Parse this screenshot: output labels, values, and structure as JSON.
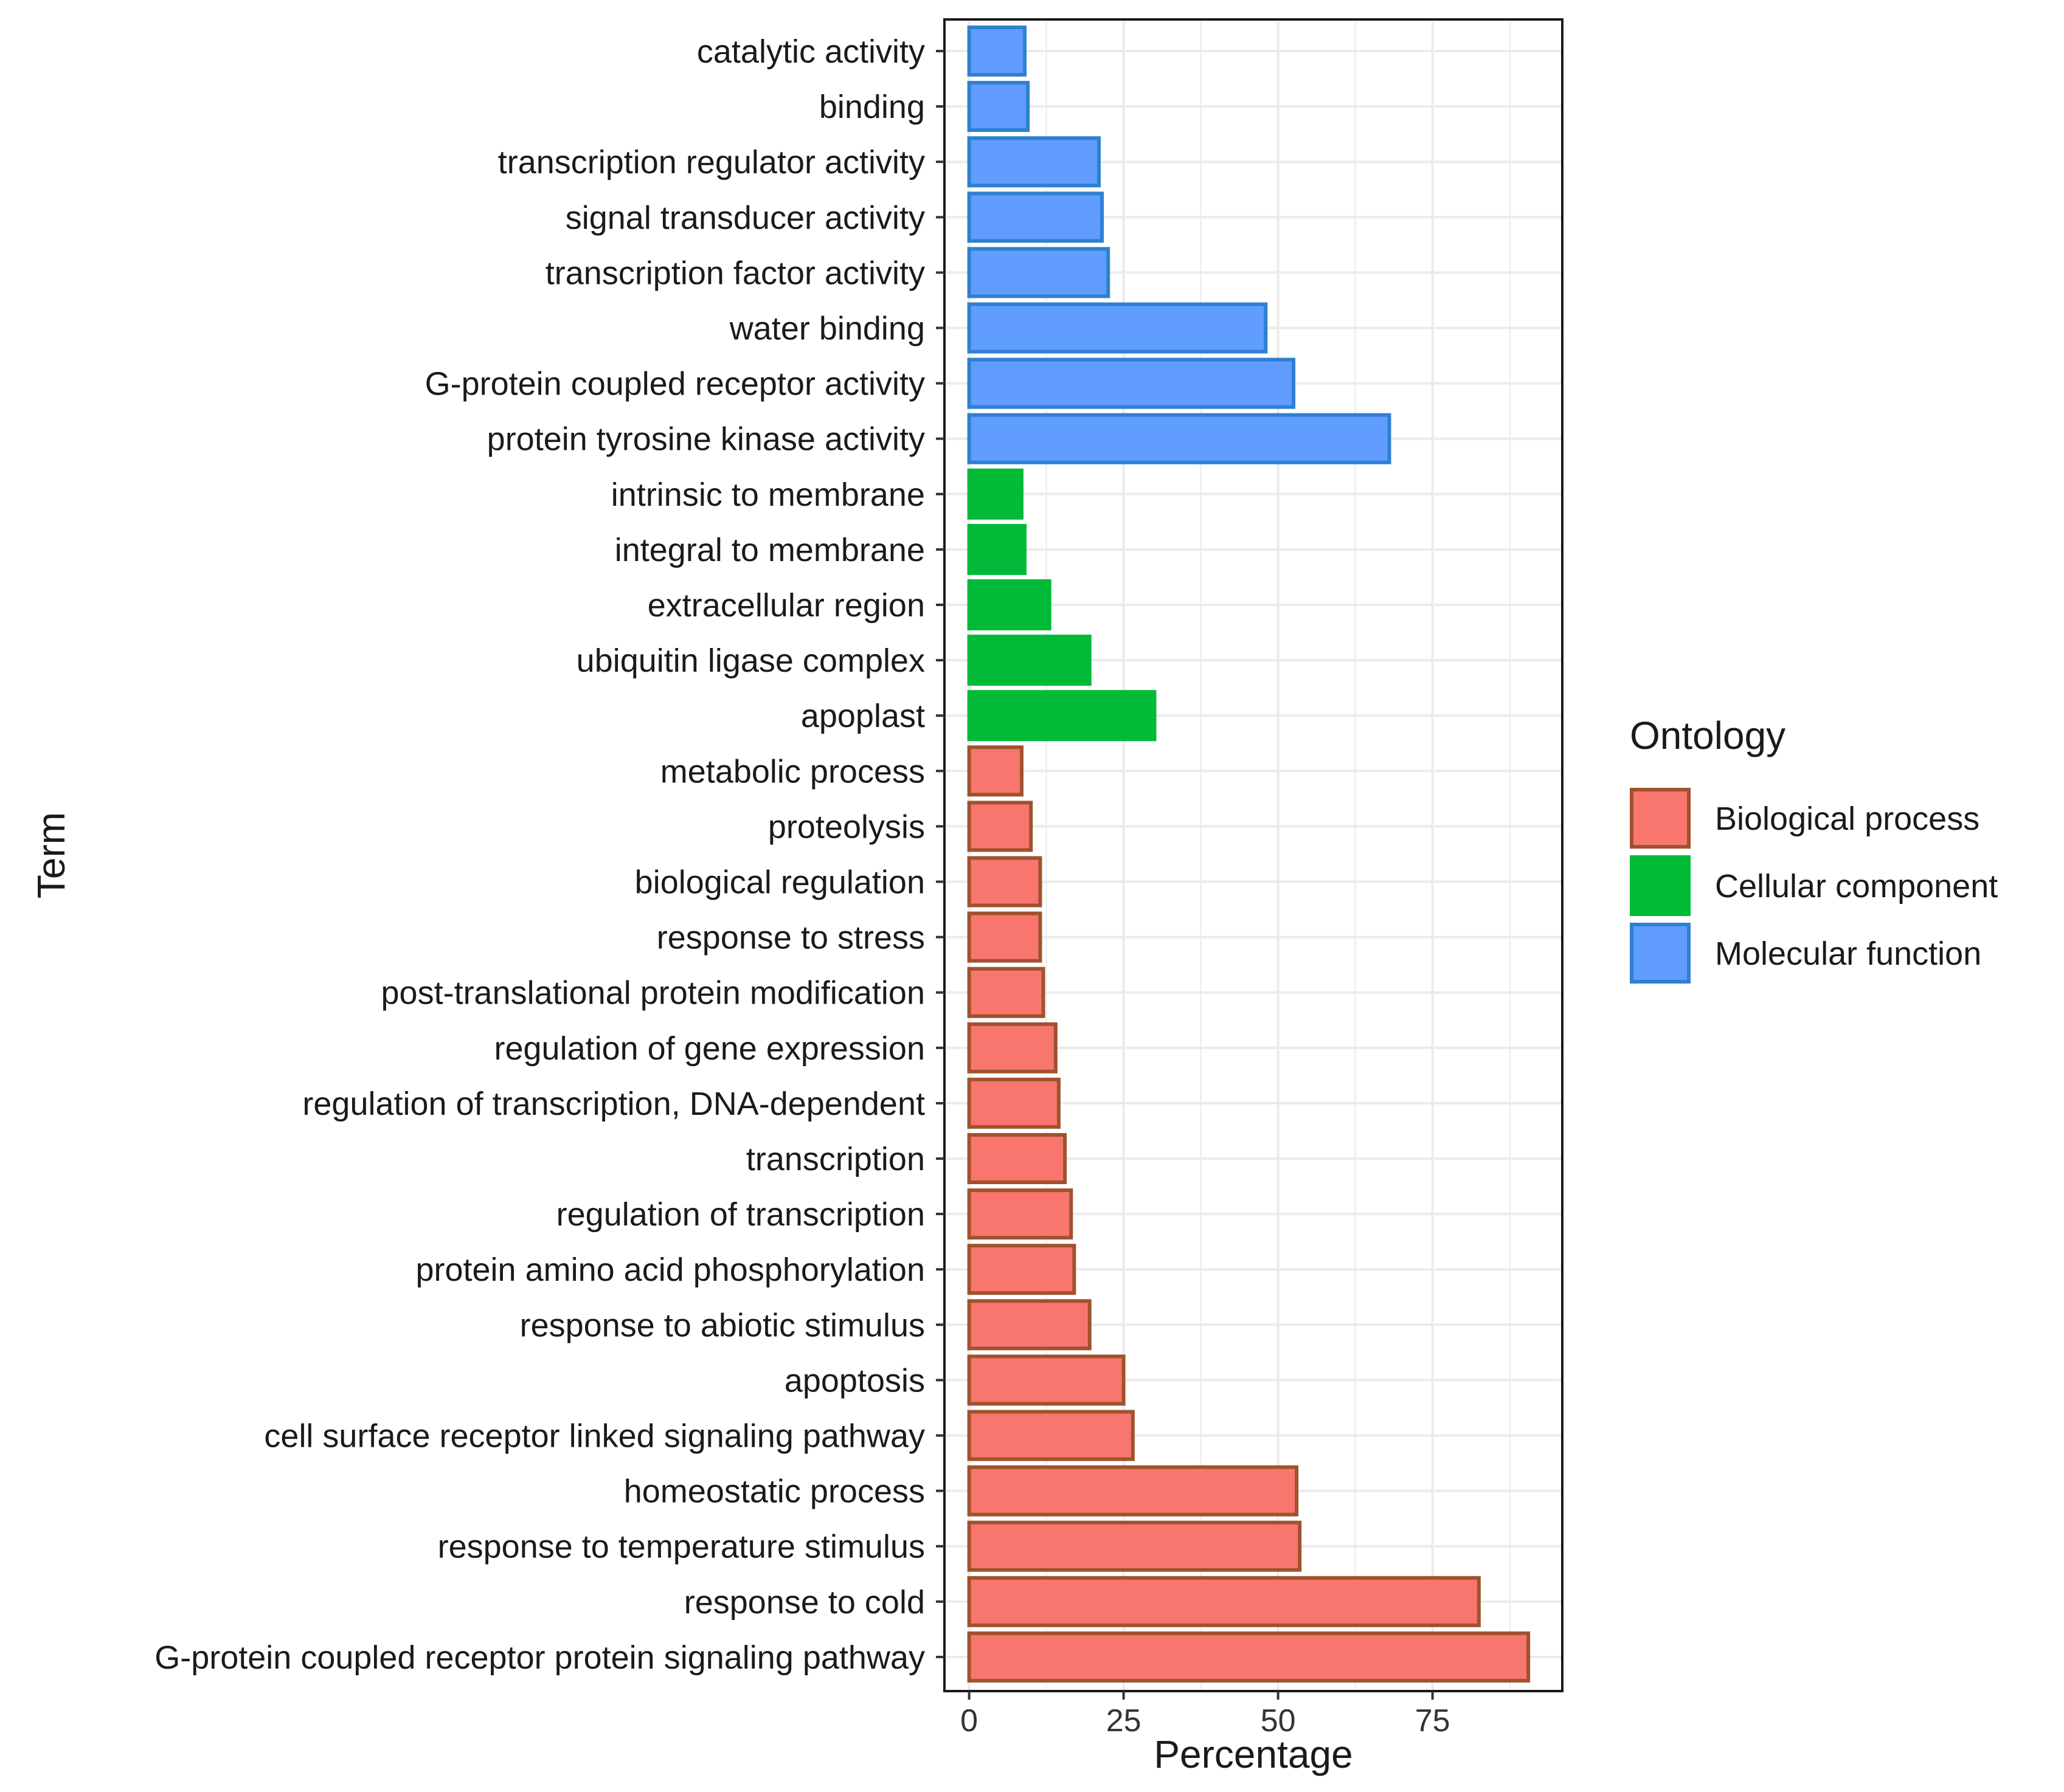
{
  "chart_data": {
    "type": "bar",
    "orientation": "horizontal",
    "title": "",
    "xlabel": "Percentage",
    "ylabel": "Term",
    "xlim": [
      -4,
      96
    ],
    "xticks": [
      0,
      25,
      50,
      75
    ],
    "grid": true,
    "legend": {
      "title": "Ontology",
      "position": "right",
      "entries": [
        {
          "name": "Biological process",
          "fill": "#F8766D",
          "outline": "#A0522D"
        },
        {
          "name": "Cellular component",
          "fill": "#00BA38",
          "outline": "#00BA38"
        },
        {
          "name": "Molecular function",
          "fill": "#619CFF",
          "outline": "#2F80D0"
        }
      ]
    },
    "bars": [
      {
        "term": "catalytic activity",
        "value": 9,
        "ontology": "Molecular function"
      },
      {
        "term": "binding",
        "value": 9.5,
        "ontology": "Molecular function"
      },
      {
        "term": "transcription regulator activity",
        "value": 21,
        "ontology": "Molecular function"
      },
      {
        "term": "signal transducer activity",
        "value": 21.5,
        "ontology": "Molecular function"
      },
      {
        "term": "transcription factor activity",
        "value": 22.5,
        "ontology": "Molecular function"
      },
      {
        "term": "water binding",
        "value": 48,
        "ontology": "Molecular function"
      },
      {
        "term": "G-protein coupled receptor activity",
        "value": 52.5,
        "ontology": "Molecular function"
      },
      {
        "term": "protein tyrosine kinase activity",
        "value": 68,
        "ontology": "Molecular function"
      },
      {
        "term": "intrinsic to membrane",
        "value": 8.5,
        "ontology": "Cellular component"
      },
      {
        "term": "integral to membrane",
        "value": 9,
        "ontology": "Cellular component"
      },
      {
        "term": "extracellular region",
        "value": 13,
        "ontology": "Cellular component"
      },
      {
        "term": "ubiquitin ligase complex",
        "value": 19.5,
        "ontology": "Cellular component"
      },
      {
        "term": "apoplast",
        "value": 30,
        "ontology": "Cellular component"
      },
      {
        "term": "metabolic process",
        "value": 8.5,
        "ontology": "Biological process"
      },
      {
        "term": "proteolysis",
        "value": 10,
        "ontology": "Biological process"
      },
      {
        "term": "biological regulation",
        "value": 11.5,
        "ontology": "Biological process"
      },
      {
        "term": "response to stress",
        "value": 11.5,
        "ontology": "Biological process"
      },
      {
        "term": "post-translational protein modification",
        "value": 12,
        "ontology": "Biological process"
      },
      {
        "term": "regulation of gene expression",
        "value": 14,
        "ontology": "Biological process"
      },
      {
        "term": "regulation of transcription, DNA-dependent",
        "value": 14.5,
        "ontology": "Biological process"
      },
      {
        "term": "transcription",
        "value": 15.5,
        "ontology": "Biological process"
      },
      {
        "term": "regulation of transcription",
        "value": 16.5,
        "ontology": "Biological process"
      },
      {
        "term": "protein amino acid phosphorylation",
        "value": 17,
        "ontology": "Biological process"
      },
      {
        "term": "response to abiotic stimulus",
        "value": 19.5,
        "ontology": "Biological process"
      },
      {
        "term": "apoptosis",
        "value": 25,
        "ontology": "Biological process"
      },
      {
        "term": "cell surface receptor linked signaling pathway",
        "value": 26.5,
        "ontology": "Biological process"
      },
      {
        "term": "homeostatic process",
        "value": 53,
        "ontology": "Biological process"
      },
      {
        "term": "response to temperature stimulus",
        "value": 53.5,
        "ontology": "Biological process"
      },
      {
        "term": "response to cold",
        "value": 82.5,
        "ontology": "Biological process"
      },
      {
        "term": "G-protein coupled receptor protein signaling pathway",
        "value": 90.5,
        "ontology": "Biological process"
      }
    ]
  }
}
